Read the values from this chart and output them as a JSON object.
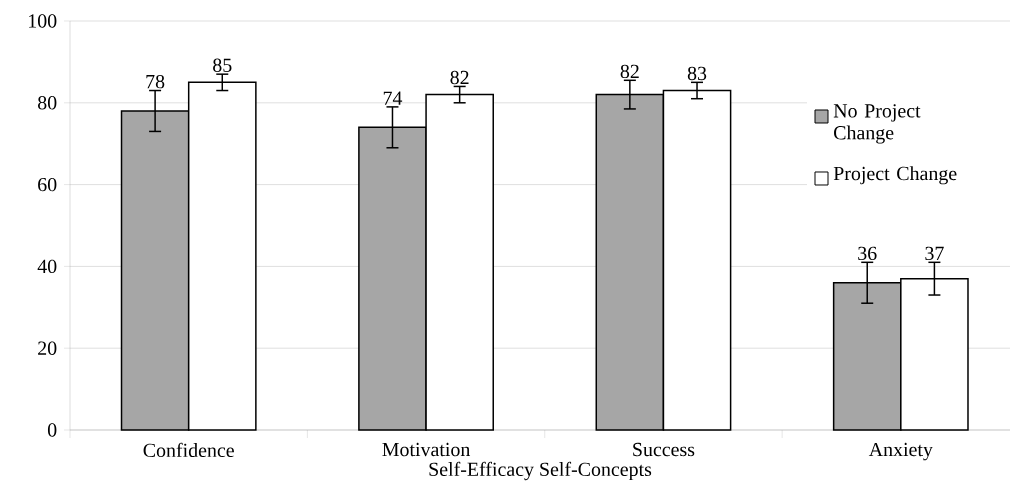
{
  "chart_data": {
    "type": "bar",
    "xlabel": "Self-Efficacy Self-Concepts",
    "categories": [
      "Confidence",
      "Motivation",
      "Success",
      "Anxiety"
    ],
    "series": [
      {
        "name": "No Project Change",
        "color": "#a6a6a6",
        "values": [
          78,
          74,
          82,
          36
        ],
        "errors": [
          5,
          5,
          3.5,
          5
        ]
      },
      {
        "name": "Project Change",
        "color": "#ffffff",
        "values": [
          85,
          82,
          83,
          37
        ],
        "errors": [
          2,
          2,
          2,
          4
        ]
      }
    ],
    "ylim": [
      0,
      100
    ],
    "yticks": [
      0,
      20,
      40,
      60,
      80,
      100
    ],
    "grid": "y",
    "legend": "right",
    "data_labels": true
  }
}
